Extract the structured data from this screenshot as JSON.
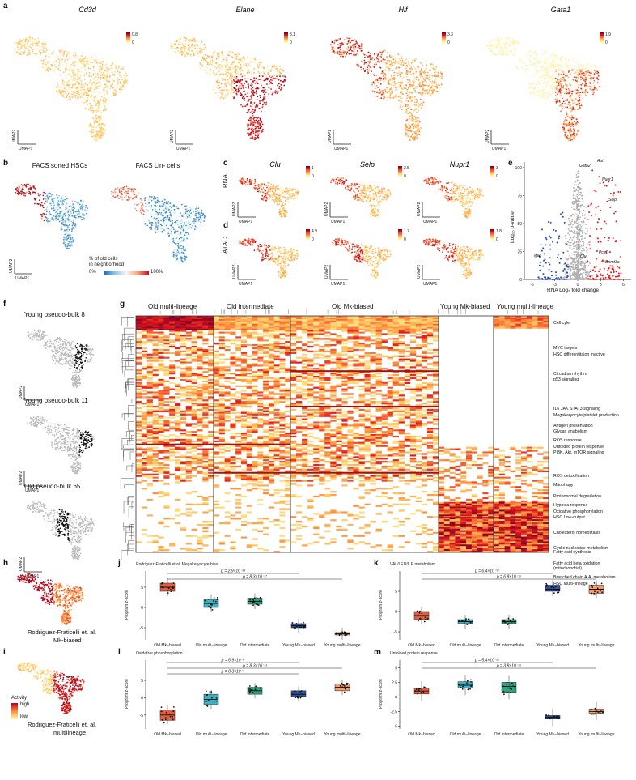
{
  "figure": {
    "panel_a": {
      "letter": "a",
      "genes": [
        {
          "name": "Cd3d",
          "max": "0.8",
          "min": "0"
        },
        {
          "name": "Elane",
          "max": "3.1",
          "min": "0"
        },
        {
          "name": "Hlf",
          "max": "3.3",
          "min": "0"
        },
        {
          "name": "Gata1",
          "max": "1.9",
          "min": "0"
        }
      ],
      "axis_x": "UMAP1",
      "axis_y": "UMAP2"
    },
    "panel_b": {
      "letter": "b",
      "titles": [
        "FACS sorted HSCs",
        "FACS Lin- cells"
      ],
      "legend_title_1": "% of old cells",
      "legend_title_2": "in neighborhood",
      "legend_low": "0%",
      "legend_high": "100%",
      "axis_x": "UMAP1",
      "axis_y": "UMAP2"
    },
    "panel_c": {
      "letter": "c",
      "row_label": "RNA",
      "genes": [
        {
          "name": "Clu",
          "max": "1",
          "min": "0"
        },
        {
          "name": "Selp",
          "max": "2.5",
          "min": "0"
        },
        {
          "name": "Nupr1",
          "max": "3",
          "min": "0"
        }
      ],
      "axis_x": "UMAP1",
      "axis_y": "UMAP2"
    },
    "panel_d": {
      "letter": "d",
      "row_label": "ATAC",
      "scales": [
        {
          "max": "4.9",
          "min": "0"
        },
        {
          "max": "1.7",
          "min": "0"
        },
        {
          "max": "1.8",
          "min": "0"
        }
      ],
      "axis_x": "UMAP1",
      "axis_y": "UMAP2"
    },
    "panel_e": {
      "letter": "e",
      "xlabel": "RNA Log₂ fold change",
      "ylabel": "Log₁₀ p-value",
      "gene_labels": [
        "Apt",
        "Gata2",
        "Nupr1",
        "Selp",
        "Igf1",
        "Clu",
        "Pcs1",
        "Dnmt3a"
      ]
    },
    "panel_f": {
      "letter": "f",
      "titles": [
        "Young pseudo-bulk 8",
        "Young pseudo-bulk 11",
        "Old pseudo-bulk 65"
      ],
      "axis_x": "UMAP1",
      "axis_y": "UMAP2"
    },
    "panel_g": {
      "letter": "g",
      "groups": [
        "Old multi-lineage",
        "Old intermediate",
        "Old Mk-biased",
        "Young Mk-biased",
        "Young multi-lineage"
      ],
      "pathways": [
        "Cell cyle",
        "MYC targets",
        "HSC differentitaion inactive",
        "Circadium rhythm",
        "p53 signaling",
        "IL6 JAK STAT3 signaling",
        "Megakaryocyte/platelet production",
        "Antigen presentation",
        "Glycan anabolism",
        "ROS response",
        "Unfolded protein response",
        "PI3K, Akt, mTOR signaling",
        "ROS detoxification",
        "Mitophagy",
        "Proteosomal degradation",
        "Hypoxia response",
        "Oxidative phosphorylation",
        "HSC Low-output",
        "Cholesterol homeostasis",
        "Cyclic nucleotide metabolism",
        "Fatty acid synthesis",
        "Fatty acid beta oxidation",
        "(mitochondrial)",
        "Branched chain A.A. metabolism",
        "HSC Multi-lineage"
      ]
    },
    "panel_h": {
      "letter": "h",
      "caption_1": "Rodriguez-Fraticelli et. al.",
      "caption_2": "Mk-biased"
    },
    "panel_i": {
      "letter": "i",
      "caption_1": "Rodriguez-Fraticelli et. al.",
      "caption_2": "multilineage",
      "legend_title": "Activity",
      "legend_high": "high",
      "legend_low": "low"
    }
  },
  "chart_data": [
    {
      "type": "box",
      "panel": "j",
      "title": "Rodriguez-Fraticelli et al. Megakaryocyte bias",
      "ylabel": "Program z-score",
      "categories": [
        "Old Mk−biased",
        "Old multi−lineage",
        "Old intermediate",
        "Young Mk−biased",
        "Young multi−lineage"
      ],
      "medians": [
        5,
        1,
        1.5,
        -4.5,
        -6.5
      ],
      "q1": [
        4,
        0,
        0.8,
        -5,
        -6.8
      ],
      "q3": [
        6,
        2,
        2.3,
        -4,
        -6.2
      ],
      "colors": [
        "#e06040",
        "#40b0c0",
        "#30a080",
        "#3050a0",
        "#f0a070"
      ],
      "yticks": [
        5,
        0,
        -5
      ],
      "ylim": [
        -8,
        10
      ],
      "pvalues": [
        "p = 2.9×10⁻²³",
        "p = 8.3×10⁻¹⁷"
      ]
    },
    {
      "type": "box",
      "panel": "k",
      "title": "VAL/LEU/ILE metabolism",
      "ylabel": "Program z-score",
      "categories": [
        "Old Mk−biased",
        "Old multi−lineage",
        "Old intermediate",
        "Young Mk−biased",
        "Young multi−lineage"
      ],
      "medians": [
        -1,
        -2.5,
        -2.5,
        5.5,
        5.5
      ],
      "q1": [
        -2,
        -3,
        -3,
        5,
        4.5
      ],
      "q3": [
        0,
        -2,
        -2,
        6.5,
        6.5
      ],
      "colors": [
        "#e06040",
        "#40b0c0",
        "#30a080",
        "#3050a0",
        "#f0a070"
      ],
      "yticks": [
        5,
        0,
        -5
      ],
      "ylim": [
        -7,
        11
      ],
      "pvalues": [
        "p = 6.4×10⁻¹⁷",
        "p = 6.8×10⁻¹⁵"
      ]
    },
    {
      "type": "box",
      "panel": "l",
      "title": "Oxidative phosphorylation",
      "ylabel": "Program z-score",
      "categories": [
        "Old Mk−biased",
        "Old multi−lineage",
        "Old intermediate",
        "Young Mk−biased",
        "Young multi−lineage"
      ],
      "medians": [
        -5,
        -0.5,
        2,
        1,
        3
      ],
      "q1": [
        -6.5,
        -2,
        1,
        0.3,
        2
      ],
      "q3": [
        -3.5,
        1,
        3,
        2,
        4
      ],
      "colors": [
        "#e06040",
        "#40b0c0",
        "#30a080",
        "#3050a0",
        "#f0a070"
      ],
      "yticks": [
        5,
        0,
        -5
      ],
      "ylim": [
        -9,
        12
      ],
      "pvalues": [
        "p = 6.9×10⁻⁶",
        "p = 8.3×10⁻¹³",
        "p = 8.3×10⁻⁶"
      ]
    },
    {
      "type": "box",
      "panel": "m",
      "title": "Unfolded protein response",
      "ylabel": "Program z-score",
      "categories": [
        "Old Mk−biased",
        "Old multi−lineage",
        "Old intermediate",
        "Young Mk−biased",
        "Young multi−lineage"
      ],
      "medians": [
        1,
        2,
        1.8,
        -3.5,
        -2.5
      ],
      "q1": [
        0.5,
        1.5,
        0.8,
        -3.8,
        -2.8
      ],
      "q3": [
        1.5,
        2.6,
        2.5,
        -3.2,
        -2.1
      ],
      "colors": [
        "#e06040",
        "#40b0c0",
        "#30a080",
        "#3050a0",
        "#f0a070"
      ],
      "yticks": [
        5,
        2.5,
        0,
        -2.5,
        -5
      ],
      "ylim": [
        -5.5,
        7
      ],
      "pvalues": [
        "p = 5.4×10⁻²⁵",
        "p = 3.8×10⁻¹⁵"
      ]
    }
  ]
}
